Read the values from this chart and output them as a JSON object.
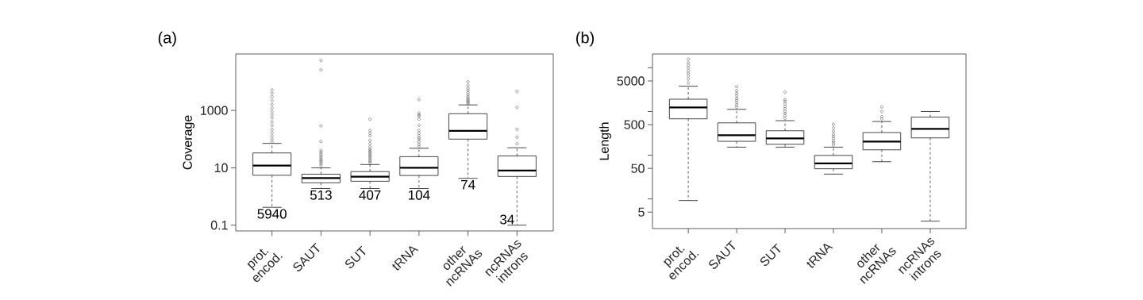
{
  "chart_data": [
    {
      "type": "box",
      "title": "(a)",
      "ylabel": "Coverage",
      "log": true,
      "categories": [
        "prot. encod.",
        "SAUT",
        "SUT",
        "tRNA",
        "other ncRNAs",
        "ncRNAs introns"
      ],
      "ylim": [
        0.063,
        93000
      ],
      "yticks": [
        0.1,
        10,
        1000
      ],
      "boxes": [
        {
          "low": 0.42,
          "q1": 5.5,
          "median": 12,
          "q3": 33,
          "high": 71,
          "outliers": [
            80,
            100,
            130,
            170,
            220,
            300,
            400,
            550,
            700,
            900,
            1200,
            1600,
            2200,
            3000,
            4000,
            5200
          ]
        },
        {
          "low": 1.9,
          "q1": 3.0,
          "median": 4.4,
          "q3": 6,
          "high": 10,
          "outliers": [
            12,
            14,
            16,
            18,
            20,
            23,
            26,
            30,
            35,
            40,
            83,
            290,
            26000,
            55000
          ]
        },
        {
          "low": 1.9,
          "q1": 3.4,
          "median": 4.9,
          "q3": 7.4,
          "high": 13,
          "outliers": [
            15,
            17,
            19,
            22,
            25,
            28,
            32,
            36,
            40,
            45,
            55,
            70,
            90,
            130,
            160,
            200,
            490
          ]
        },
        {
          "low": 1.9,
          "q1": 5.4,
          "median": 10,
          "q3": 24.5,
          "high": 48,
          "outliers": [
            55,
            65,
            80,
            95,
            110,
            130,
            160,
            200,
            300,
            500,
            630,
            700,
            800,
            2400
          ]
        },
        {
          "low": 4.3,
          "q1": 100,
          "median": 195,
          "q3": 770,
          "high": 1560,
          "outliers": [
            1700,
            1900,
            2100,
            2300,
            2600,
            3000,
            3500,
            4200,
            5000,
            6000,
            7500,
            10000
          ]
        },
        {
          "low": 0.1,
          "q1": 5,
          "median": 8,
          "q3": 26,
          "high": 50,
          "outliers": [
            69,
            117,
            220,
            1270,
            4600
          ]
        }
      ],
      "annotations": [
        "5940",
        "513",
        "407",
        "104",
        "74",
        "34"
      ]
    },
    {
      "type": "box",
      "title": "(b)",
      "ylabel": "Length",
      "log": true,
      "categories": [
        "prot. encod.",
        "SAUT",
        "SUT",
        "tRNA",
        "other ncRNAs",
        "ncRNAs introns"
      ],
      "ylim": [
        2.1,
        20700
      ],
      "yticks": [
        5,
        {
          "value": 10,
          "label": null
        },
        50,
        {
          "value": 100,
          "label": null
        },
        500,
        {
          "value": 1000,
          "label": null
        },
        5000,
        {
          "value": 10000,
          "label": null
        }
      ],
      "boxes": [
        {
          "low": 9.2,
          "q1": 680,
          "median": 1240,
          "q3": 1910,
          "high": 3790,
          "outliers": [
            4500,
            5500,
            6500,
            7500,
            8500,
            10000,
            11500,
            13000,
            15700
          ]
        },
        {
          "low": 153,
          "q1": 208,
          "median": 287,
          "q3": 550,
          "high": 1120,
          "outliers": [
            1250,
            1400,
            1600,
            1800,
            2000,
            2300,
            2600,
            3000,
            3700
          ]
        },
        {
          "low": 153,
          "q1": 178,
          "median": 242,
          "q3": 363,
          "high": 617,
          "outliers": [
            700,
            800,
            900,
            1000,
            1150,
            1300,
            1500,
            1700,
            1870,
            2750
          ]
        },
        {
          "low": 37,
          "q1": 49,
          "median": 65,
          "q3": 99,
          "high": 153,
          "outliers": [
            170,
            190,
            210,
            240,
            270,
            300,
            350,
            420,
            510
          ]
        },
        {
          "low": 71,
          "q1": 133,
          "median": 205,
          "q3": 330,
          "high": 590,
          "outliers": [
            680,
            760,
            1000,
            1270
          ]
        },
        {
          "low": 3.1,
          "q1": 249,
          "median": 400,
          "q3": 745,
          "high": 1000
        }
      ]
    }
  ]
}
